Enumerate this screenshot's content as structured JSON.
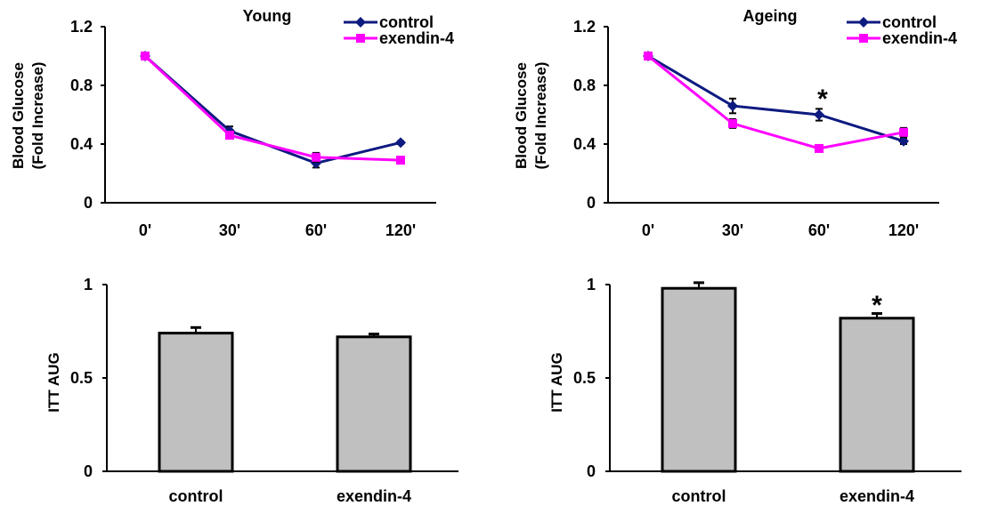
{
  "colors": {
    "control": "#0d1a80",
    "exendin": "#ff00ff",
    "bar_fill": "#c0c0c0",
    "axis": "#000000"
  },
  "chart_data": [
    {
      "type": "line",
      "title": "Young",
      "ylabel_line1": "Blood Glucose",
      "ylabel_line2": "(Fold Increase)",
      "categories": [
        "0'",
        "30'",
        "60'",
        "120'"
      ],
      "yticks": [
        "1.2",
        "0.8",
        "0.4",
        "0"
      ],
      "ylim": [
        0,
        1.2
      ],
      "series": [
        {
          "name": "control",
          "values": [
            1.0,
            0.49,
            0.27,
            0.41
          ],
          "errors": [
            0.01,
            0.03,
            0.03,
            0.01
          ],
          "marker": "diamond"
        },
        {
          "name": "exendin-4",
          "values": [
            1.0,
            0.46,
            0.31,
            0.29
          ],
          "errors": [
            0.01,
            0.02,
            0.03,
            0.02
          ],
          "marker": "square"
        }
      ],
      "annotations": []
    },
    {
      "type": "line",
      "title": "Ageing",
      "ylabel_line1": "Blood Glucose",
      "ylabel_line2": "(Fold Increase)",
      "categories": [
        "0'",
        "30'",
        "60'",
        "120'"
      ],
      "yticks": [
        "1.2",
        "0.8",
        "0.4",
        "0"
      ],
      "ylim": [
        0,
        1.2
      ],
      "series": [
        {
          "name": "control",
          "values": [
            1.0,
            0.66,
            0.6,
            0.42
          ],
          "errors": [
            0.01,
            0.05,
            0.04,
            0.02
          ],
          "marker": "diamond"
        },
        {
          "name": "exendin-4",
          "values": [
            1.0,
            0.54,
            0.37,
            0.48
          ],
          "errors": [
            0.01,
            0.03,
            0.02,
            0.03
          ],
          "marker": "square"
        }
      ],
      "annotations": [
        {
          "text": "*",
          "category": "60'",
          "y": 0.72
        }
      ]
    },
    {
      "type": "bar",
      "ylabel": "ITT AUG",
      "categories": [
        "control",
        "exendin-4"
      ],
      "values": [
        0.74,
        0.72
      ],
      "errors": [
        0.03,
        0.015
      ],
      "yticks": [
        "1",
        "0.5",
        "0"
      ],
      "ylim": [
        0,
        1
      ],
      "annotations": []
    },
    {
      "type": "bar",
      "ylabel": "ITT AUG",
      "categories": [
        "control",
        "exendin-4"
      ],
      "values": [
        0.98,
        0.82
      ],
      "errors": [
        0.03,
        0.025
      ],
      "yticks": [
        "1",
        "0.5",
        "0"
      ],
      "ylim": [
        0,
        1
      ],
      "annotations": [
        {
          "text": "*",
          "category": "exendin-4",
          "y": 0.9
        }
      ]
    }
  ]
}
